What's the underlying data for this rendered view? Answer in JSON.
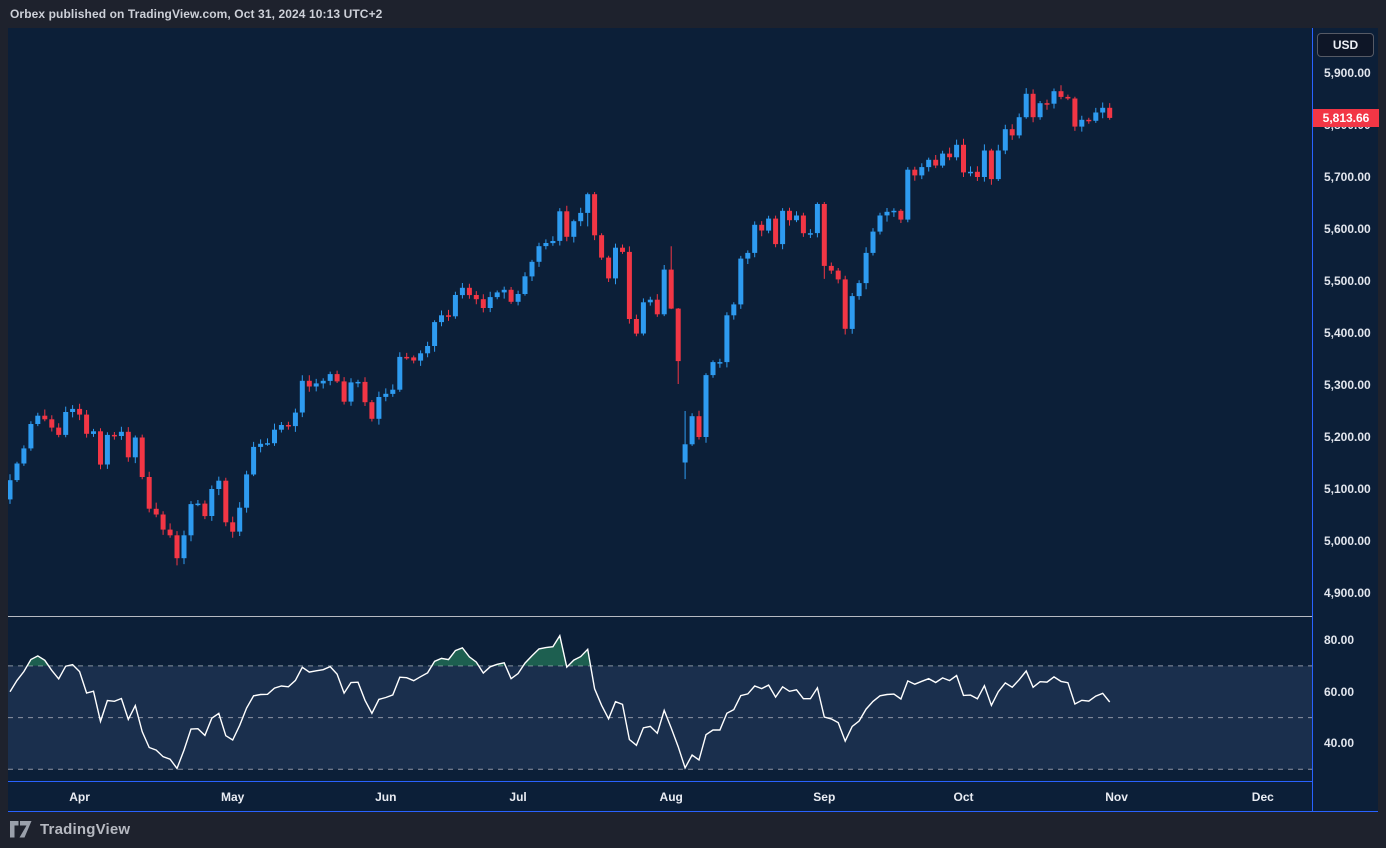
{
  "header": {
    "attribution": "Orbex published on TradingView.com, Oct 31, 2024 10:13 UTC+2"
  },
  "footer": {
    "brand": "TradingView"
  },
  "price_axis_panel": {
    "currency_button_label": "USD",
    "last_price_label": "5,813.66"
  },
  "chart_data": {
    "type": "candlestick_with_rsi",
    "currency": "USD",
    "last_close": 5813.66,
    "date_range": "2024-03-15 to 2024-10-30",
    "price_axis": {
      "visible_range": [
        4848,
        5987
      ],
      "ticks": [
        {
          "label": "5,900.00",
          "value": 5900
        },
        {
          "label": "5,800.00",
          "value": 5800
        },
        {
          "label": "5,700.00",
          "value": 5700
        },
        {
          "label": "5,600.00",
          "value": 5600
        },
        {
          "label": "5,500.00",
          "value": 5500
        },
        {
          "label": "5,400.00",
          "value": 5400
        },
        {
          "label": "5,300.00",
          "value": 5300
        },
        {
          "label": "5,200.00",
          "value": 5200
        },
        {
          "label": "5,100.00",
          "value": 5100
        },
        {
          "label": "5,000.00",
          "value": 5000
        },
        {
          "label": "4,900.00",
          "value": 4900
        }
      ]
    },
    "month_ticks": [
      {
        "label": "Apr",
        "index": 10
      },
      {
        "label": "May",
        "index": 32
      },
      {
        "label": "Jun",
        "index": 54
      },
      {
        "label": "Jul",
        "index": 73
      },
      {
        "label": "Aug",
        "index": 95
      },
      {
        "label": "Sep",
        "index": 117
      },
      {
        "label": "Oct",
        "index": 137
      },
      {
        "label": "Nov",
        "index": 159
      },
      {
        "label": "Dec",
        "index": 180
      }
    ],
    "first_open": 5080,
    "closes": [
      5117,
      5149,
      5178,
      5225,
      5241,
      5234,
      5218,
      5204,
      5248,
      5254,
      5243,
      5206,
      5211,
      5147,
      5204,
      5202,
      5210,
      5161,
      5199,
      5123,
      5062,
      5051,
      5022,
      5011,
      4967,
      5011,
      5071,
      5072,
      5048,
      5100,
      5116,
      5036,
      5018,
      5064,
      5128,
      5181,
      5187,
      5188,
      5214,
      5223,
      5221,
      5247,
      5308,
      5297,
      5303,
      5308,
      5321,
      5307,
      5268,
      5305,
      5306,
      5267,
      5235,
      5277,
      5283,
      5291,
      5354,
      5353,
      5347,
      5361,
      5375,
      5421,
      5434,
      5432,
      5473,
      5487,
      5473,
      5465,
      5448,
      5469,
      5478,
      5483,
      5460,
      5475,
      5509,
      5537,
      5567,
      5573,
      5577,
      5634,
      5585,
      5615,
      5631,
      5667,
      5588,
      5545,
      5505,
      5564,
      5556,
      5427,
      5399,
      5459,
      5464,
      5436,
      5522,
      5447,
      5346,
      5186,
      5240,
      5200,
      5319,
      5344,
      5344,
      5434,
      5455,
      5543,
      5554,
      5608,
      5597,
      5620,
      5571,
      5635,
      5617,
      5626,
      5592,
      5592,
      5648,
      5529,
      5520,
      5503,
      5408,
      5471,
      5496,
      5554,
      5595,
      5626,
      5633,
      5635,
      5618,
      5714,
      5703,
      5719,
      5733,
      5722,
      5745,
      5738,
      5762,
      5709,
      5710,
      5700,
      5751,
      5696,
      5751,
      5792,
      5780,
      5815,
      5860,
      5815,
      5842,
      5841,
      5865,
      5854,
      5851,
      5797,
      5810,
      5808,
      5824,
      5833,
      5813.66
    ],
    "open_overrides": {
      "97": 5151
    },
    "high_low_overrides": {
      "24": [
        5019,
        4953
      ],
      "83": [
        5670,
        5605
      ],
      "95": [
        5567,
        5446
      ],
      "96": [
        5448,
        5302
      ],
      "97": [
        5250,
        5119
      ],
      "117": [
        5652,
        5504
      ],
      "146": [
        5871,
        5812
      ]
    },
    "rsi": {
      "period": 14,
      "seed_avg_gain": 12,
      "seed_avg_loss": 8,
      "levels": [
        70,
        50,
        30
      ],
      "axis_ticks": [
        {
          "label": "80.00",
          "value": 80
        },
        {
          "label": "60.00",
          "value": 60
        },
        {
          "label": "40.00",
          "value": 40
        }
      ]
    },
    "colors": {
      "background": "#0c1f38",
      "outer_background": "#1e222d",
      "frame_blue": "#2962ff",
      "up": "#2e9bf0",
      "down": "#f23645",
      "last_price_bg": "#f23645",
      "rsi_line": "#ffffff",
      "rsi_level_line": "#8d93a3",
      "rsi_band_fill": "rgba(126,152,221,0.13)",
      "rsi_over_fill": "rgba(46,160,103,0.50)",
      "separator": "#b7bac2"
    }
  }
}
